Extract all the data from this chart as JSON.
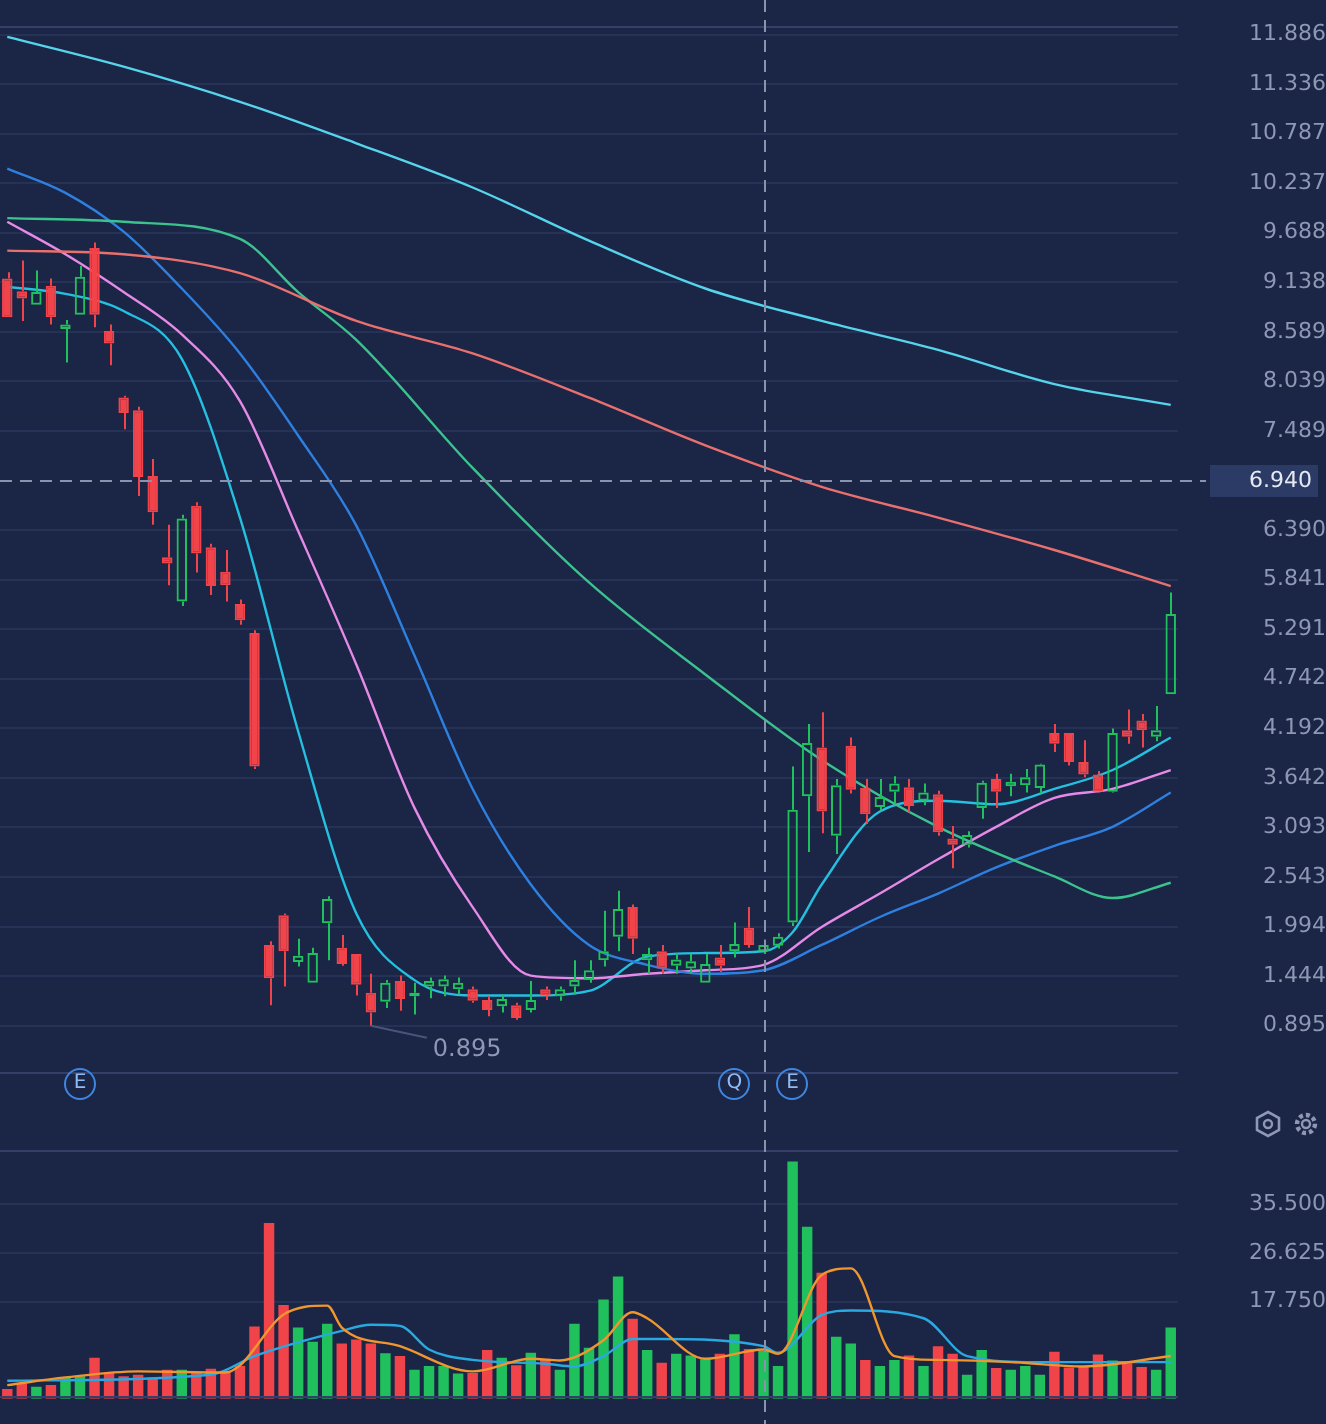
{
  "chart_data": [
    {
      "type": "candlestick",
      "categories": [
        null,
        null,
        null,
        null,
        null,
        null,
        null,
        null,
        null,
        null,
        null,
        null,
        null,
        null,
        null,
        null,
        null,
        null,
        null,
        null,
        null,
        null,
        null,
        null,
        null,
        null,
        null,
        null,
        null,
        null,
        null,
        null,
        null,
        null,
        null,
        null,
        null,
        null,
        null,
        null,
        null,
        null,
        null,
        null,
        null,
        null,
        null,
        null,
        null,
        null,
        null,
        null,
        null,
        null,
        null,
        null,
        null,
        null,
        null,
        null,
        null,
        null,
        null,
        null,
        null,
        null,
        null,
        null,
        null,
        null,
        null,
        null,
        null,
        null,
        null,
        null,
        null,
        null,
        null,
        null,
        null
      ],
      "ohlc": [
        [
          9.18,
          9.25,
          8.75,
          8.75
        ],
        [
          9.04,
          9.38,
          8.71,
          8.96
        ],
        [
          8.89,
          9.27,
          8.89,
          9.03
        ],
        [
          9.1,
          9.18,
          8.67,
          8.75
        ],
        [
          8.62,
          8.72,
          8.25,
          8.67
        ],
        [
          8.78,
          9.32,
          8.78,
          9.2
        ],
        [
          9.52,
          9.58,
          8.64,
          8.78
        ],
        [
          8.6,
          8.67,
          8.22,
          8.46
        ],
        [
          7.86,
          7.88,
          7.51,
          7.69
        ],
        [
          7.72,
          7.76,
          6.77,
          6.98
        ],
        [
          6.99,
          7.18,
          6.45,
          6.59
        ],
        [
          6.09,
          6.45,
          5.78,
          6.02
        ],
        [
          5.6,
          6.56,
          5.55,
          6.52
        ],
        [
          6.66,
          6.7,
          5.92,
          6.13
        ],
        [
          6.2,
          6.24,
          5.67,
          5.77
        ],
        [
          5.93,
          6.17,
          5.6,
          5.78
        ],
        [
          5.57,
          5.62,
          5.34,
          5.39
        ],
        [
          5.25,
          5.28,
          3.74,
          3.77
        ],
        [
          1.79,
          1.83,
          1.12,
          1.42
        ],
        [
          2.12,
          2.14,
          1.33,
          1.72
        ],
        [
          1.6,
          1.86,
          1.55,
          1.67
        ],
        [
          1.37,
          1.76,
          1.37,
          1.7
        ],
        [
          2.03,
          2.33,
          1.62,
          2.3
        ],
        [
          1.76,
          1.9,
          1.56,
          1.58
        ],
        [
          1.69,
          1.69,
          1.23,
          1.35
        ],
        [
          1.26,
          1.47,
          0.895,
          1.04
        ],
        [
          1.16,
          1.4,
          1.09,
          1.37
        ],
        [
          1.39,
          1.45,
          1.06,
          1.19
        ],
        [
          1.22,
          1.37,
          1.02,
          1.26
        ],
        [
          1.33,
          1.43,
          1.2,
          1.39
        ],
        [
          1.33,
          1.45,
          1.22,
          1.41
        ],
        [
          1.3,
          1.43,
          1.24,
          1.37
        ],
        [
          1.3,
          1.33,
          1.15,
          1.17
        ],
        [
          1.18,
          1.22,
          1.0,
          1.07
        ],
        [
          1.11,
          1.24,
          1.04,
          1.19
        ],
        [
          1.12,
          1.15,
          0.96,
          0.98
        ],
        [
          1.07,
          1.39,
          1.04,
          1.18
        ],
        [
          1.3,
          1.33,
          1.18,
          1.23
        ],
        [
          1.22,
          1.33,
          1.17,
          1.3
        ],
        [
          1.33,
          1.62,
          1.24,
          1.4
        ],
        [
          1.4,
          1.62,
          1.37,
          1.51
        ],
        [
          1.62,
          2.17,
          1.55,
          1.72
        ],
        [
          1.88,
          2.39,
          1.72,
          2.19
        ],
        [
          2.21,
          2.24,
          1.69,
          1.86
        ],
        [
          1.62,
          1.76,
          1.47,
          1.69
        ],
        [
          1.72,
          1.79,
          1.47,
          1.53
        ],
        [
          1.56,
          1.7,
          1.47,
          1.63
        ],
        [
          1.53,
          1.69,
          1.47,
          1.61
        ],
        [
          1.37,
          1.69,
          1.37,
          1.58
        ],
        [
          1.65,
          1.79,
          1.49,
          1.56
        ],
        [
          1.72,
          2.04,
          1.65,
          1.8
        ],
        [
          1.98,
          2.21,
          1.76,
          1.79
        ],
        [
          1.72,
          1.85,
          1.69,
          1.79
        ],
        [
          1.78,
          1.92,
          1.75,
          1.88
        ],
        [
          2.04,
          3.77,
          2.0,
          3.29
        ],
        [
          3.44,
          4.24,
          2.82,
          4.03
        ],
        [
          3.98,
          4.37,
          3.03,
          3.27
        ],
        [
          3.0,
          3.63,
          2.8,
          3.56
        ],
        [
          4.0,
          4.09,
          3.47,
          3.51
        ],
        [
          3.53,
          3.63,
          3.13,
          3.24
        ],
        [
          3.32,
          3.63,
          3.28,
          3.43
        ],
        [
          3.49,
          3.66,
          3.35,
          3.58
        ],
        [
          3.54,
          3.63,
          3.26,
          3.33
        ],
        [
          3.39,
          3.58,
          3.34,
          3.48
        ],
        [
          3.46,
          3.5,
          3.0,
          3.04
        ],
        [
          2.97,
          3.11,
          2.64,
          2.9
        ],
        [
          2.9,
          3.05,
          2.87,
          3.01
        ],
        [
          3.31,
          3.61,
          3.19,
          3.59
        ],
        [
          3.63,
          3.69,
          3.31,
          3.49
        ],
        [
          3.55,
          3.69,
          3.44,
          3.6
        ],
        [
          3.56,
          3.74,
          3.48,
          3.65
        ],
        [
          3.53,
          3.8,
          3.47,
          3.79
        ],
        [
          4.14,
          4.24,
          3.93,
          4.02
        ],
        [
          4.14,
          4.14,
          3.78,
          3.82
        ],
        [
          3.82,
          4.06,
          3.65,
          3.68
        ],
        [
          3.68,
          3.72,
          3.48,
          3.49
        ],
        [
          3.49,
          4.19,
          3.48,
          4.14
        ],
        [
          4.17,
          4.4,
          4.02,
          4.1
        ],
        [
          4.28,
          4.35,
          3.98,
          4.17
        ],
        [
          4.1,
          4.44,
          4.05,
          4.17
        ],
        [
          4.57,
          5.7,
          4.57,
          5.46
        ]
      ],
      "colors": [
        "#f0434a",
        "#f0434a",
        "#20c05c",
        "#f0434a",
        "#20c05c",
        "#20c05c",
        "#f0434a",
        "#f0434a",
        "#f0434a",
        "#f0434a",
        "#f0434a",
        "#f0434a",
        "#20c05c",
        "#f0434a",
        "#f0434a",
        "#f0434a",
        "#f0434a",
        "#f0434a",
        "#f0434a",
        "#f0434a",
        "#20c05c",
        "#20c05c",
        "#20c05c",
        "#f0434a",
        "#f0434a",
        "#f0434a",
        "#20c05c",
        "#f0434a",
        "#20c05c",
        "#20c05c",
        "#20c05c",
        "#20c05c",
        "#f0434a",
        "#f0434a",
        "#20c05c",
        "#f0434a",
        "#20c05c",
        "#f0434a",
        "#20c05c",
        "#20c05c",
        "#20c05c",
        "#20c05c",
        "#20c05c",
        "#f0434a",
        "#20c05c",
        "#f0434a",
        "#20c05c",
        "#20c05c",
        "#20c05c",
        "#f0434a",
        "#20c05c",
        "#f0434a",
        "#20c05c",
        "#20c05c",
        "#20c05c",
        "#20c05c",
        "#f0434a",
        "#20c05c",
        "#f0434a",
        "#f0434a",
        "#20c05c",
        "#20c05c",
        "#f0434a",
        "#20c05c",
        "#f0434a",
        "#f0434a",
        "#20c05c",
        "#20c05c",
        "#f0434a",
        "#20c05c",
        "#20c05c",
        "#20c05c",
        "#f0434a",
        "#f0434a",
        "#f0434a",
        "#f0434a",
        "#20c05c",
        "#f0434a",
        "#f0434a",
        "#20c05c",
        "#20c05c"
      ],
      "series": [
        {
          "type": "line",
          "color": "#56d4ec",
          "values": [
            11.86,
            null,
            null,
            null,
            null,
            null,
            null,
            null,
            11.53,
            null,
            null,
            null,
            null,
            null,
            null,
            null,
            11.14,
            null,
            null,
            null,
            null,
            null,
            null,
            null,
            10.68,
            null,
            null,
            null,
            null,
            null,
            null,
            null,
            10.19,
            null,
            null,
            null,
            null,
            null,
            null,
            null,
            9.6,
            null,
            null,
            null,
            null,
            null,
            null,
            null,
            9.07,
            null,
            null,
            null,
            null,
            null,
            null,
            null,
            8.71,
            null,
            null,
            null,
            null,
            null,
            null,
            null,
            8.39,
            null,
            null,
            null,
            null,
            null,
            null,
            null,
            8.01,
            null,
            null,
            null,
            null,
            null,
            null,
            null,
            7.78
          ]
        },
        {
          "type": "line",
          "color": "#e8706e",
          "values": [
            9.49,
            null,
            null,
            null,
            null,
            null,
            null,
            null,
            9.45,
            null,
            null,
            null,
            null,
            null,
            null,
            null,
            9.24,
            null,
            null,
            null,
            null,
            null,
            null,
            null,
            8.71,
            null,
            null,
            null,
            null,
            null,
            null,
            null,
            8.35,
            null,
            null,
            null,
            null,
            null,
            null,
            null,
            7.86,
            null,
            null,
            null,
            null,
            null,
            null,
            null,
            7.33,
            null,
            null,
            null,
            null,
            null,
            null,
            null,
            6.87,
            null,
            null,
            null,
            null,
            null,
            null,
            null,
            6.53,
            null,
            null,
            null,
            null,
            null,
            null,
            null,
            6.17,
            null,
            null,
            null,
            null,
            null,
            null,
            null,
            5.77
          ]
        },
        {
          "type": "line",
          "color": "#3cc28f",
          "values": [
            9.85,
            null,
            null,
            null,
            null,
            null,
            null,
            null,
            9.81,
            null,
            null,
            null,
            null,
            null,
            null,
            null,
            9.62,
            null,
            null,
            null,
            9.03,
            null,
            null,
            null,
            8.5,
            null,
            null,
            null,
            null,
            null,
            null,
            null,
            7.08,
            null,
            null,
            null,
            null,
            null,
            null,
            null,
            5.81,
            null,
            null,
            null,
            null,
            null,
            null,
            null,
            4.79,
            null,
            null,
            null,
            null,
            null,
            null,
            null,
            3.84,
            null,
            null,
            null,
            null,
            null,
            null,
            null,
            3.1,
            null,
            null,
            null,
            null,
            null,
            null,
            null,
            2.55,
            null,
            null,
            null,
            2.31,
            null,
            null,
            null,
            2.48
          ]
        },
        {
          "type": "line",
          "color": "#2d80e0",
          "values": [
            10.4,
            null,
            null,
            null,
            10.13,
            null,
            null,
            null,
            9.7,
            null,
            null,
            null,
            9.07,
            null,
            null,
            null,
            8.35,
            null,
            null,
            null,
            7.44,
            null,
            null,
            null,
            6.44,
            null,
            null,
            null,
            5.0,
            null,
            null,
            null,
            3.52,
            null,
            null,
            null,
            2.46,
            null,
            null,
            null,
            1.79,
            null,
            null,
            null,
            1.57,
            null,
            null,
            null,
            1.47,
            null,
            null,
            null,
            1.51,
            null,
            null,
            null,
            1.79,
            null,
            null,
            null,
            2.1,
            null,
            null,
            null,
            2.36,
            null,
            null,
            null,
            2.65,
            null,
            null,
            null,
            2.89,
            null,
            null,
            null,
            3.1,
            null,
            null,
            null,
            3.48
          ]
        },
        {
          "type": "line",
          "color": "#e58ae6",
          "values": [
            9.81,
            null,
            null,
            null,
            9.45,
            null,
            null,
            null,
            9.03,
            null,
            null,
            null,
            8.56,
            null,
            null,
            null,
            7.82,
            null,
            null,
            null,
            6.38,
            null,
            null,
            null,
            4.9,
            null,
            null,
            null,
            3.31,
            null,
            null,
            null,
            2.21,
            null,
            null,
            null,
            1.45,
            null,
            null,
            null,
            1.42,
            null,
            null,
            null,
            1.47,
            null,
            null,
            null,
            1.51,
            null,
            null,
            null,
            1.57,
            null,
            null,
            null,
            1.99,
            null,
            null,
            null,
            2.36,
            null,
            null,
            null,
            2.74,
            null,
            null,
            null,
            3.1,
            null,
            null,
            null,
            3.42,
            null,
            null,
            null,
            3.52,
            null,
            null,
            null,
            3.73
          ]
        },
        {
          "type": "line",
          "color": "#25c0e0",
          "values": [
            9.09,
            null,
            null,
            null,
            9.01,
            null,
            null,
            null,
            8.82,
            null,
            null,
            null,
            8.29,
            null,
            null,
            null,
            6.53,
            null,
            null,
            null,
            4.16,
            null,
            null,
            null,
            2.14,
            null,
            null,
            null,
            1.4,
            null,
            null,
            null,
            1.23,
            null,
            null,
            null,
            1.23,
            null,
            null,
            null,
            1.28,
            null,
            null,
            null,
            1.66,
            null,
            null,
            null,
            1.7,
            null,
            null,
            null,
            1.72,
            null,
            1.93,
            null,
            2.46,
            null,
            null,
            null,
            3.27,
            null,
            null,
            null,
            3.39,
            null,
            null,
            null,
            3.35,
            null,
            null,
            null,
            3.52,
            null,
            null,
            null,
            3.73,
            null,
            null,
            null,
            4.09
          ]
        }
      ],
      "ylim": [
        0.35,
        11.99
      ],
      "yticks": [
        0.895,
        1.444,
        1.994,
        2.543,
        3.093,
        3.642,
        4.192,
        4.742,
        5.291,
        5.841,
        {
          "value": 6.39,
          "label": "6.390"
        },
        7.489,
        8.039,
        8.589,
        9.138,
        9.688,
        10.237,
        10.787,
        11.336,
        11.886
      ],
      "grid": "y",
      "legend": false,
      "tick_labels": "y",
      "ref_lines": [
        {
          "axis": "y",
          "value": 6.94,
          "label": "6.940"
        }
      ],
      "annotations": [
        "0.895",
        "E",
        "Q",
        "E"
      ]
    },
    {
      "type": "bar",
      "categories": [
        null,
        null,
        null,
        null,
        null,
        null,
        null,
        null,
        null,
        null,
        null,
        null,
        null,
        null,
        null,
        null,
        null,
        null,
        null,
        null,
        null,
        null,
        null,
        null,
        null,
        null,
        null,
        null,
        null,
        null,
        null,
        null,
        null,
        null,
        null,
        null,
        null,
        null,
        null,
        null,
        null,
        null,
        null,
        null,
        null,
        null,
        null,
        null,
        null,
        null,
        null,
        null,
        null,
        null,
        null,
        null,
        null,
        null,
        null,
        null,
        null,
        null,
        null,
        null,
        null,
        null,
        null,
        null,
        null,
        null,
        null,
        null,
        null,
        null,
        null,
        null,
        null,
        null,
        null,
        null,
        null
      ],
      "series": [
        {
          "type": "bar",
          "colors": [
            "#f0434a",
            "#f0434a",
            "#20c05c",
            "#f0434a",
            "#20c05c",
            "#20c05c",
            "#f0434a",
            "#f0434a",
            "#f0434a",
            "#f0434a",
            "#f0434a",
            "#f0434a",
            "#20c05c",
            "#f0434a",
            "#f0434a",
            "#f0434a",
            "#f0434a",
            "#f0434a",
            "#f0434a",
            "#f0434a",
            "#20c05c",
            "#20c05c",
            "#20c05c",
            "#f0434a",
            "#f0434a",
            "#f0434a",
            "#20c05c",
            "#f0434a",
            "#20c05c",
            "#20c05c",
            "#20c05c",
            "#20c05c",
            "#f0434a",
            "#f0434a",
            "#20c05c",
            "#f0434a",
            "#20c05c",
            "#f0434a",
            "#20c05c",
            "#20c05c",
            "#20c05c",
            "#20c05c",
            "#20c05c",
            "#f0434a",
            "#20c05c",
            "#f0434a",
            "#20c05c",
            "#20c05c",
            "#20c05c",
            "#f0434a",
            "#20c05c",
            "#f0434a",
            "#20c05c",
            "#20c05c",
            "#20c05c",
            "#20c05c",
            "#f0434a",
            "#20c05c",
            "#20c05c",
            "#f0434a",
            "#20c05c",
            "#20c05c",
            "#f0434a",
            "#20c05c",
            "#f0434a",
            "#f0434a",
            "#20c05c",
            "#20c05c",
            "#f0434a",
            "#20c05c",
            "#20c05c",
            "#20c05c",
            "#f0434a",
            "#f0434a",
            "#f0434a",
            "#f0434a",
            "#20c05c",
            "#f0434a",
            "#f0434a",
            "#20c05c",
            "#20c05c"
          ],
          "values": [
            1.8,
            2.7,
            2.2,
            2.5,
            3.9,
            4.1,
            7.5,
            4.8,
            4.1,
            4.4,
            3.9,
            5.3,
            5.3,
            4.7,
            5.5,
            5.1,
            6.0,
            13.2,
            32.1,
            17.1,
            13.0,
            10.4,
            13.7,
            10.1,
            10.8,
            10.1,
            8.3,
            7.8,
            5.3,
            6.0,
            6.0,
            4.6,
            4.7,
            8.9,
            7.5,
            6.1,
            8.4,
            7.3,
            5.3,
            13.7,
            9.3,
            18.1,
            22.3,
            14.6,
            8.9,
            6.6,
            8.2,
            7.9,
            7.2,
            8.2,
            11.8,
            9.1,
            8.7,
            6.0,
            43.3,
            31.4,
            23.0,
            11.3,
            10.1,
            7.1,
            6.0,
            7.1,
            7.9,
            6.0,
            9.6,
            8.2,
            4.4,
            8.9,
            5.6,
            5.3,
            6.0,
            4.4,
            8.6,
            5.7,
            5.9,
            8.1,
            7.0,
            6.5,
            5.8,
            5.3,
            13.0
          ]
        },
        {
          "type": "line",
          "color": "#f0962e",
          "values": [
            2.5,
            null,
            null,
            null,
            3.9,
            null,
            null,
            null,
            null,
            5.0,
            null,
            null,
            null,
            null,
            null,
            4.8,
            6.1,
            null,
            null,
            15.4,
            null,
            null,
            17.0,
            13.0,
            null,
            null,
            null,
            9.6,
            null,
            null,
            null,
            null,
            5.0,
            null,
            null,
            null,
            7.3,
            null,
            7.0,
            null,
            null,
            10.7,
            null,
            15.8,
            14.7,
            null,
            null,
            null,
            7.3,
            null,
            null,
            null,
            9.0,
            8.2,
            null,
            null,
            22.6,
            null,
            23.8,
            null,
            null,
            7.8,
            null,
            null,
            7.1,
            null,
            null,
            null,
            null,
            6.7,
            null,
            null,
            null,
            null,
            5.9,
            null,
            null,
            null,
            null,
            null,
            7.8
          ]
        },
        {
          "type": "line",
          "color": "#2aa8e0",
          "values": [
            3.3,
            null,
            null,
            null,
            null,
            null,
            null,
            null,
            null,
            null,
            null,
            null,
            null,
            null,
            4.4,
            null,
            null,
            7.8,
            null,
            null,
            null,
            null,
            null,
            12.4,
            null,
            13.5,
            null,
            13.3,
            null,
            9.0,
            null,
            null,
            7.1,
            null,
            null,
            null,
            null,
            6.4,
            null,
            5.9,
            null,
            7.8,
            null,
            10.9,
            null,
            10.9,
            null,
            null,
            null,
            null,
            null,
            null,
            9.6,
            8.4,
            null,
            null,
            15.3,
            null,
            16.1,
            null,
            null,
            null,
            null,
            14.7,
            null,
            null,
            7.8,
            null,
            null,
            null,
            null,
            6.7,
            null,
            null,
            null,
            null,
            null,
            null,
            null,
            null,
            6.7
          ]
        }
      ],
      "ylim": [
        0,
        45.4
      ],
      "yticks": [
        {
          "value": 17.75,
          "label": "17.750"
        },
        {
          "value": 26.625,
          "label": "26.625"
        },
        {
          "value": 35.5,
          "label": "35.500"
        }
      ],
      "grid": "y",
      "legend": false,
      "tick_labels": "y"
    }
  ]
}
